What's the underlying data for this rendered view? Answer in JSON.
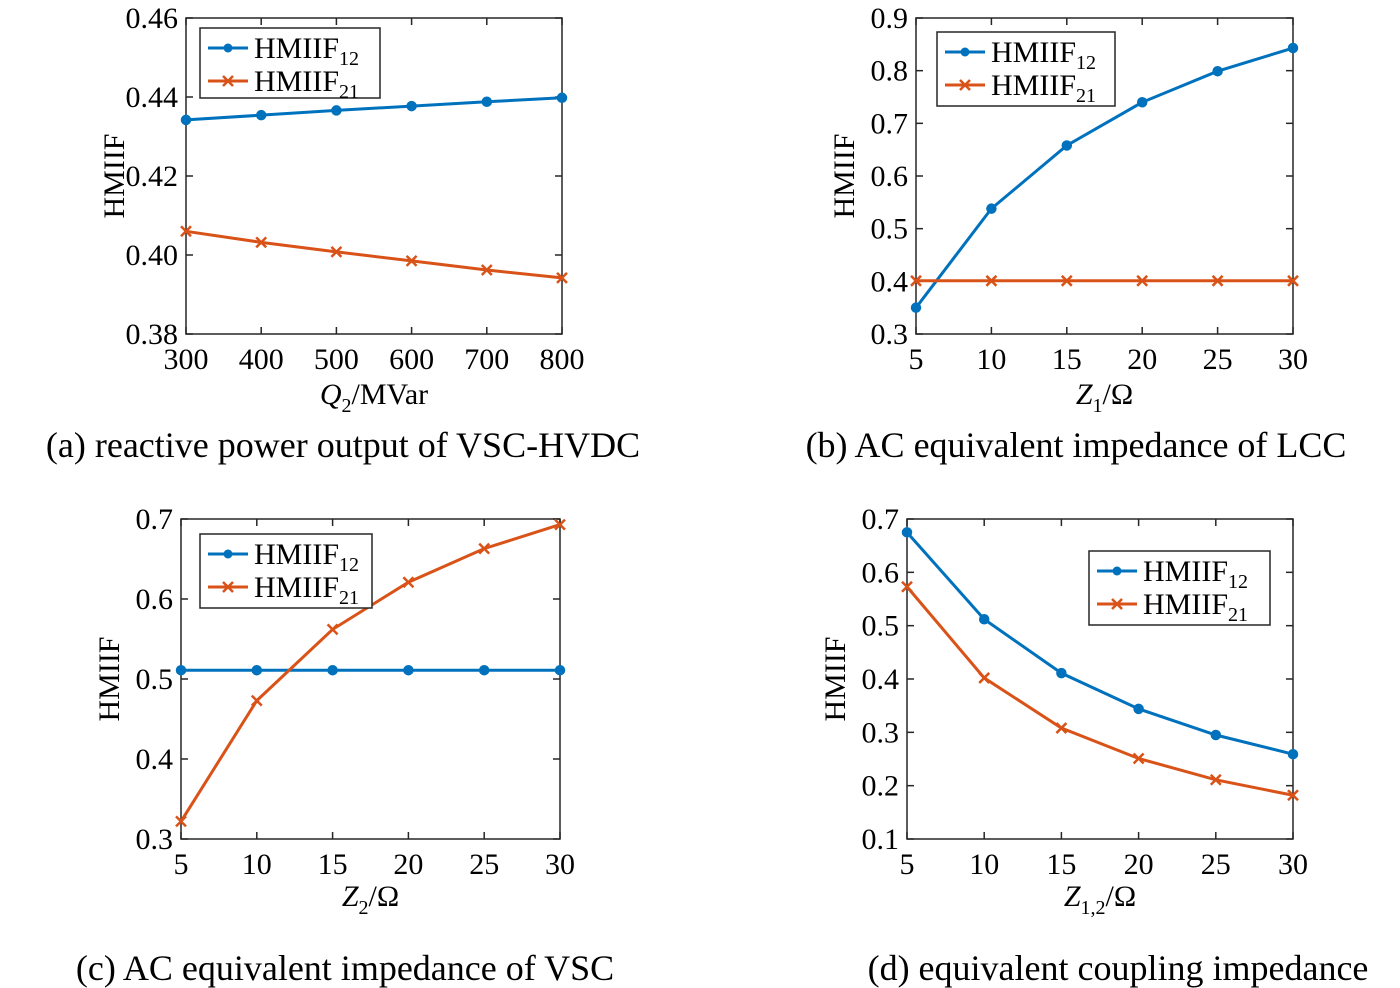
{
  "chart_data": [
    {
      "type": "line",
      "caption": "(a) reactive power output of VSC-HVDC",
      "xlabel": {
        "main": "Q",
        "sub": "2",
        "rest": "/MVar",
        "italic": true
      },
      "ylabel": "HMIIF",
      "x": [
        300,
        400,
        500,
        600,
        700,
        800
      ],
      "xlim": [
        300,
        800
      ],
      "ylim": [
        0.38,
        0.46
      ],
      "xticks": [
        300,
        400,
        500,
        600,
        700,
        800
      ],
      "xtick_labels": [
        "300",
        "400",
        "500",
        "600",
        "700",
        "800"
      ],
      "yticks": [
        0.38,
        0.4,
        0.42,
        0.44,
        0.46
      ],
      "ytick_labels": [
        "0.38",
        "0.40",
        "0.42",
        "0.44",
        "0.46"
      ],
      "legend_position": "top-left",
      "series": [
        {
          "name": "HMIIF",
          "sub": "12",
          "color": "#0072BD",
          "marker": "circle",
          "values": [
            0.4342,
            0.4354,
            0.4366,
            0.4377,
            0.4388,
            0.4398
          ]
        },
        {
          "name": "HMIIF",
          "sub": "21",
          "color": "#D95319",
          "marker": "x",
          "values": [
            0.406,
            0.4032,
            0.4008,
            0.3985,
            0.3962,
            0.3942
          ]
        }
      ]
    },
    {
      "type": "line",
      "caption": "(b) AC equivalent impedance of LCC",
      "xlabel": {
        "main": "Z",
        "sub": "1",
        "rest": "/Ω",
        "italic": false
      },
      "ylabel": "HMIIF",
      "x": [
        5,
        10,
        15,
        20,
        25,
        30
      ],
      "xlim": [
        5,
        30
      ],
      "ylim": [
        0.3,
        0.9
      ],
      "xticks": [
        5,
        10,
        15,
        20,
        25,
        30
      ],
      "xtick_labels": [
        "5",
        "10",
        "15",
        "20",
        "25",
        "30"
      ],
      "yticks": [
        0.3,
        0.4,
        0.5,
        0.6,
        0.7,
        0.8,
        0.9
      ],
      "ytick_labels": [
        "0.3",
        "0.4",
        "0.5",
        "0.6",
        "0.7",
        "0.8",
        "0.9"
      ],
      "legend_position": "top-left",
      "series": [
        {
          "name": "HMIIF",
          "sub": "12",
          "color": "#0072BD",
          "marker": "circle",
          "values": [
            0.35,
            0.538,
            0.658,
            0.74,
            0.799,
            0.843
          ]
        },
        {
          "name": "HMIIF",
          "sub": "21",
          "color": "#D95319",
          "marker": "x",
          "values": [
            0.401,
            0.401,
            0.401,
            0.401,
            0.401,
            0.401
          ]
        }
      ]
    },
    {
      "type": "line",
      "caption": "(c) AC equivalent impedance of VSC",
      "xlabel": {
        "main": "Z",
        "sub": "2",
        "rest": "/Ω",
        "italic": false
      },
      "ylabel": "HMIIF",
      "x": [
        5,
        10,
        15,
        20,
        25,
        30
      ],
      "xlim": [
        5,
        30
      ],
      "ylim": [
        0.3,
        0.7
      ],
      "xticks": [
        5,
        10,
        15,
        20,
        25,
        30
      ],
      "xtick_labels": [
        "5",
        "10",
        "15",
        "20",
        "25",
        "30"
      ],
      "yticks": [
        0.3,
        0.4,
        0.5,
        0.6,
        0.7
      ],
      "ytick_labels": [
        "0.3",
        "0.4",
        "0.5",
        "0.6",
        "0.7"
      ],
      "legend_position": "top-left",
      "series": [
        {
          "name": "HMIIF",
          "sub": "12",
          "color": "#0072BD",
          "marker": "circle",
          "values": [
            0.511,
            0.511,
            0.511,
            0.511,
            0.511,
            0.511
          ]
        },
        {
          "name": "HMIIF",
          "sub": "21",
          "color": "#D95319",
          "marker": "x",
          "values": [
            0.322,
            0.473,
            0.562,
            0.621,
            0.663,
            0.693
          ]
        }
      ]
    },
    {
      "type": "line",
      "caption": "(d) equivalent coupling impedance",
      "xlabel": {
        "main": "Z",
        "sub": "1,2",
        "rest": "/Ω",
        "italic": false
      },
      "ylabel": "HMIIF",
      "x": [
        5,
        10,
        15,
        20,
        25,
        30
      ],
      "xlim": [
        5,
        30
      ],
      "ylim": [
        0.1,
        0.7
      ],
      "xticks": [
        5,
        10,
        15,
        20,
        25,
        30
      ],
      "xtick_labels": [
        "5",
        "10",
        "15",
        "20",
        "25",
        "30"
      ],
      "yticks": [
        0.1,
        0.2,
        0.3,
        0.4,
        0.5,
        0.6,
        0.7
      ],
      "ytick_labels": [
        "0.1",
        "0.2",
        "0.3",
        "0.4",
        "0.5",
        "0.6",
        "0.7"
      ],
      "legend_position": "top-right",
      "series": [
        {
          "name": "HMIIF",
          "sub": "12",
          "color": "#0072BD",
          "marker": "circle",
          "values": [
            0.675,
            0.512,
            0.411,
            0.344,
            0.295,
            0.259
          ]
        },
        {
          "name": "HMIIF",
          "sub": "21",
          "color": "#D95319",
          "marker": "x",
          "values": [
            0.573,
            0.402,
            0.308,
            0.251,
            0.211,
            0.182
          ]
        }
      ]
    }
  ]
}
